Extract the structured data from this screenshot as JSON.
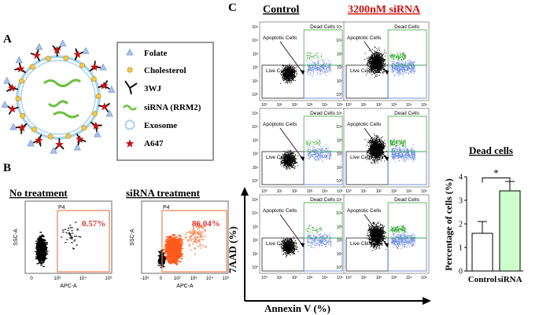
{
  "panels": {
    "a": {
      "letter": "A"
    },
    "b": {
      "letter": "B"
    },
    "c": {
      "letter": "C"
    }
  },
  "legend": {
    "items": [
      {
        "label": "Folate",
        "icon": "triangle-icon"
      },
      {
        "label": "Cholesterol",
        "icon": "circle-icon"
      },
      {
        "label": "3WJ",
        "icon": "three-way-junction-icon"
      },
      {
        "label": "siRNA (RRM2)",
        "icon": "wave-icon"
      },
      {
        "label": "Exosome",
        "icon": "ring-icon"
      },
      {
        "label": "A647",
        "icon": "star-icon"
      }
    ]
  },
  "flow_b": {
    "plots": [
      {
        "title": "No treatment",
        "gate": "P4",
        "percent": "0.57%",
        "xaxis": "APC-A",
        "yaxis": "SSC-A",
        "xticks": [
          "0",
          "10³",
          "10⁴",
          "10⁵"
        ],
        "yticks": []
      },
      {
        "title": "siRNA treatment",
        "gate": "P4",
        "percent": "86.04%",
        "xaxis": "APC-A",
        "yaxis": "SSC-A",
        "xticks": [
          "-10²",
          "0",
          "10²",
          "10³",
          "10⁴",
          "10⁵"
        ],
        "yticks": []
      }
    ]
  },
  "flow_c": {
    "col_titles": [
      "Control",
      "3200nM siRNA"
    ],
    "gate_labels": {
      "dead": "Dead Cells",
      "apoptotic": "Apoptotic Cells",
      "live": "Live Cells"
    },
    "yticks": [
      "10⁵",
      "10⁴",
      "10³",
      "10²",
      "10¹",
      "10⁰"
    ],
    "xticks": [
      "10⁰",
      "10¹",
      "10²",
      "10³",
      "10⁴",
      "10⁵"
    ],
    "xaxis": "Annexin V (%)",
    "yaxis": "7AAD (%)"
  },
  "chart_data": {
    "type": "bar",
    "title": "Dead cells",
    "categories": [
      "Control",
      "siRNA"
    ],
    "values": [
      1.6,
      3.4
    ],
    "errors": [
      0.5,
      0.4
    ],
    "ylabel": "Percentage of cells (%)",
    "xlabel": "",
    "ylim": [
      0,
      4
    ],
    "yticks": [
      0,
      1,
      2,
      3,
      4
    ],
    "significance": "*",
    "colors": [
      "#ffffff",
      "#ccffcc"
    ]
  }
}
